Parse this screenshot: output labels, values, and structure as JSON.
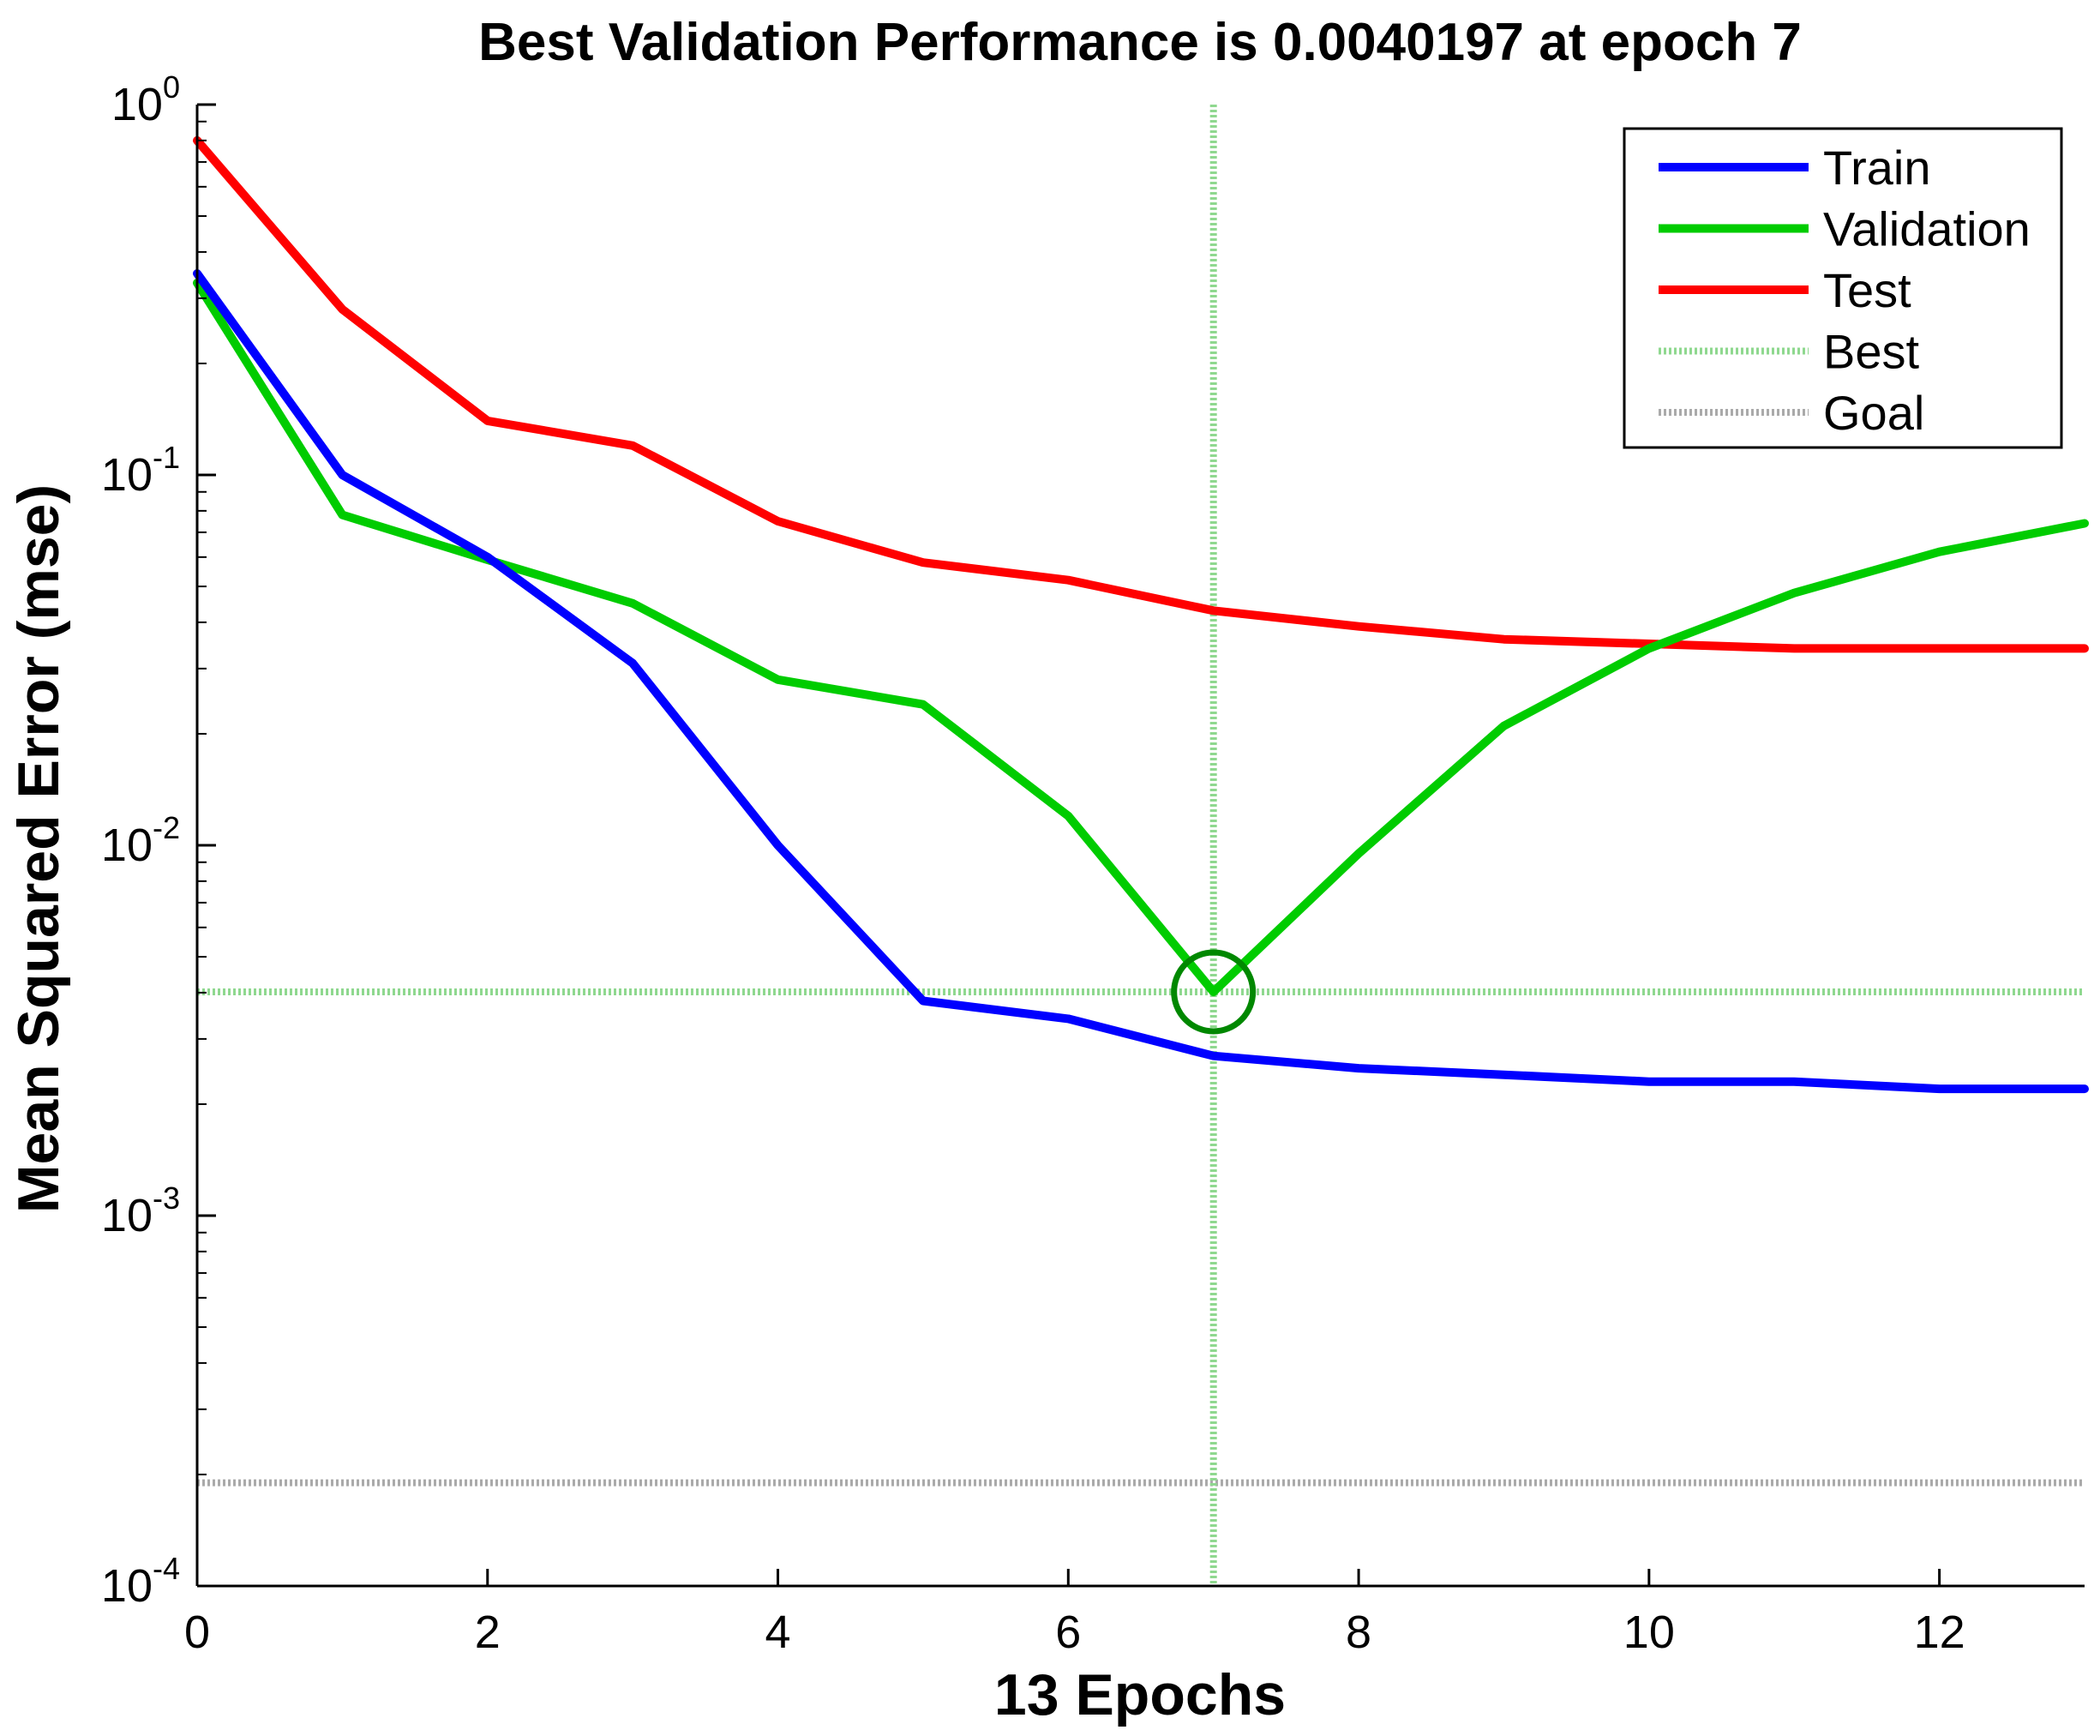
{
  "chart_data": {
    "type": "line",
    "title": "Best Validation Performance is 0.0040197 at epoch 7",
    "xlabel": "13 Epochs",
    "ylabel": "Mean Squared Error  (mse)",
    "xlim": [
      0,
      13
    ],
    "ylim": [
      0.0001,
      1
    ],
    "yscale": "log",
    "x_ticks": [
      0,
      2,
      4,
      6,
      8,
      10,
      12
    ],
    "y_ticks": [
      {
        "base": "10",
        "exp": "0",
        "value": 1
      },
      {
        "base": "10",
        "exp": "-1",
        "value": 0.1
      },
      {
        "base": "10",
        "exp": "-2",
        "value": 0.01
      },
      {
        "base": "10",
        "exp": "-3",
        "value": 0.001
      },
      {
        "base": "10",
        "exp": "-4",
        "value": 0.0001
      }
    ],
    "x": [
      0,
      1,
      2,
      3,
      4,
      5,
      6,
      7,
      8,
      9,
      10,
      11,
      12,
      13
    ],
    "series": [
      {
        "name": "Train",
        "color": "#0000ff",
        "values": [
          0.35,
          0.1,
          0.06,
          0.031,
          0.01,
          0.0038,
          0.0034,
          0.0027,
          0.0025,
          0.0024,
          0.0023,
          0.0023,
          0.0022,
          0.0022
        ]
      },
      {
        "name": "Validation",
        "color": "#00cc00",
        "values": [
          0.33,
          0.078,
          0.059,
          0.045,
          0.028,
          0.024,
          0.012,
          0.0040197,
          0.0095,
          0.021,
          0.034,
          0.048,
          0.062,
          0.074
        ]
      },
      {
        "name": "Test",
        "color": "#ff0000",
        "values": [
          0.8,
          0.28,
          0.14,
          0.12,
          0.075,
          0.058,
          0.052,
          0.043,
          0.039,
          0.036,
          0.035,
          0.034,
          0.034,
          0.034
        ]
      }
    ],
    "best": {
      "name": "Best",
      "epoch": 7,
      "value": 0.0040197,
      "color": "#8fd88f"
    },
    "goal": {
      "name": "Goal",
      "value": 0.00019,
      "color": "#aaaaaa"
    },
    "legend": {
      "position": "top-right",
      "entries": [
        "Train",
        "Validation",
        "Test",
        "Best",
        "Goal"
      ]
    }
  }
}
